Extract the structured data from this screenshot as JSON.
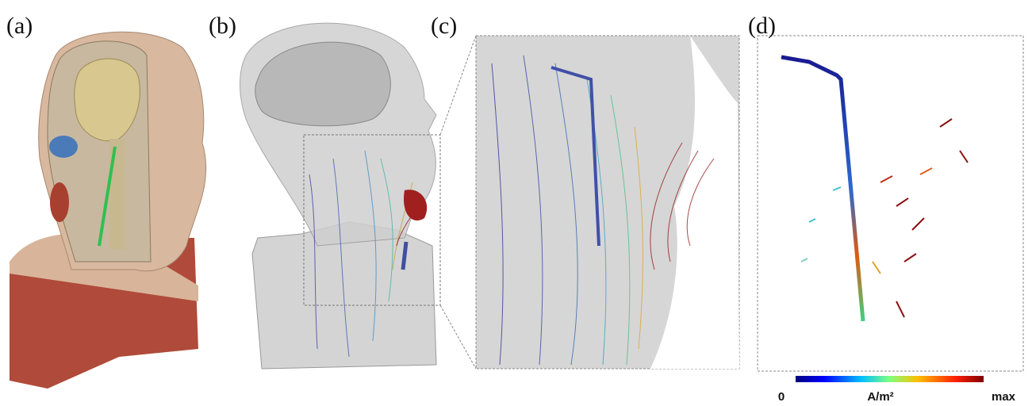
{
  "panels": [
    {
      "label": "(a)"
    },
    {
      "label": "(b)"
    },
    {
      "label": "(c)"
    },
    {
      "label": "(d)"
    }
  ],
  "colorbar": {
    "min_label": "0",
    "unit_label": "A/m²",
    "max_label": "max"
  }
}
